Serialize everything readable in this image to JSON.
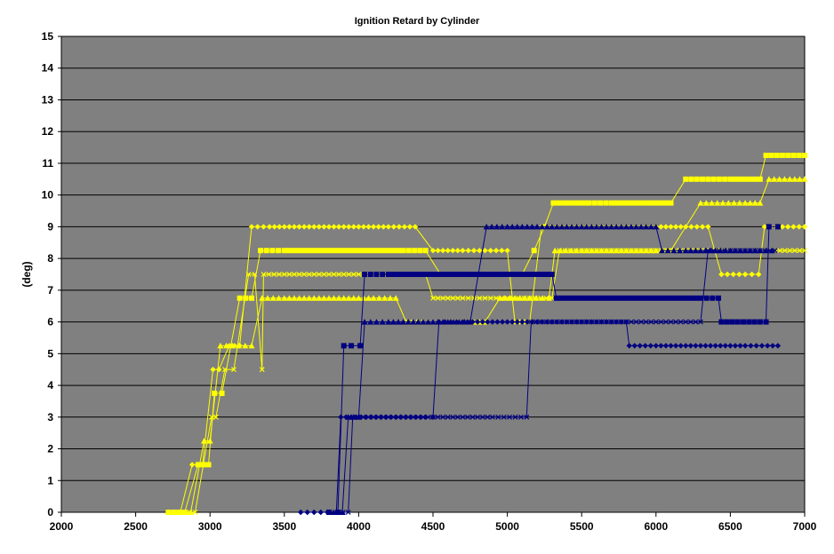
{
  "chart_data": {
    "type": "line",
    "title": "Ignition Retard by Cylinder",
    "xlabel": "",
    "ylabel": "(deg)",
    "xlim": [
      2000,
      7000
    ],
    "ylim": [
      0,
      15
    ],
    "x_ticks": [
      2000,
      2500,
      3000,
      3500,
      4000,
      4500,
      5000,
      5500,
      6000,
      6500,
      7000
    ],
    "y_ticks": [
      0,
      1,
      2,
      3,
      4,
      5,
      6,
      7,
      8,
      9,
      10,
      11,
      12,
      13,
      14,
      15
    ],
    "grid": "horizontal",
    "plot_background": "#808080",
    "series": [
      {
        "color": "#FFFF00",
        "marker": "diamond",
        "points": [
          [
            2720,
            0
          ],
          [
            2800,
            0
          ],
          [
            2880,
            1.5
          ],
          [
            2950,
            1.5
          ],
          [
            3020,
            4.5
          ],
          [
            3060,
            4.5
          ],
          [
            3130,
            5.25
          ],
          [
            3200,
            5.25
          ],
          [
            3280,
            9
          ],
          [
            3400,
            9
          ],
          [
            3600,
            9
          ],
          [
            3800,
            9
          ],
          [
            4000,
            9
          ],
          [
            4200,
            9
          ],
          [
            4380,
            9
          ],
          [
            4500,
            8.25
          ],
          [
            4700,
            8.25
          ],
          [
            4850,
            8.25
          ],
          [
            5000,
            8.25
          ],
          [
            5050,
            6
          ],
          [
            5150,
            6
          ],
          [
            5230,
            9
          ],
          [
            5400,
            9
          ],
          [
            5600,
            9
          ],
          [
            5800,
            9
          ],
          [
            6000,
            9
          ],
          [
            6200,
            9
          ],
          [
            6350,
            9
          ],
          [
            6440,
            7.5
          ],
          [
            6600,
            7.5
          ],
          [
            6690,
            7.5
          ],
          [
            6730,
            9
          ],
          [
            6850,
            9
          ],
          [
            7000,
            9
          ]
        ]
      },
      {
        "color": "#FFFF00",
        "marker": "square",
        "points": [
          [
            2720,
            0
          ],
          [
            2830,
            0
          ],
          [
            2920,
            1.5
          ],
          [
            2990,
            1.5
          ],
          [
            3030,
            3.75
          ],
          [
            3080,
            3.75
          ],
          [
            3200,
            6.75
          ],
          [
            3280,
            6.75
          ],
          [
            3340,
            8.25
          ],
          [
            3500,
            8.25
          ],
          [
            3700,
            8.25
          ],
          [
            3900,
            8.25
          ],
          [
            4100,
            8.25
          ],
          [
            4300,
            8.25
          ],
          [
            4450,
            8.25
          ],
          [
            4550,
            7.5
          ],
          [
            4700,
            7.5
          ],
          [
            4850,
            7.5
          ],
          [
            5000,
            7.5
          ],
          [
            5100,
            7.5
          ],
          [
            5180,
            8.25
          ],
          [
            5250,
            9
          ],
          [
            5310,
            9.75
          ],
          [
            5450,
            9.75
          ],
          [
            5550,
            9.75
          ],
          [
            5700,
            9.75
          ],
          [
            5900,
            9.75
          ],
          [
            6100,
            9.75
          ],
          [
            6200,
            10.5
          ],
          [
            6350,
            10.5
          ],
          [
            6500,
            10.5
          ],
          [
            6700,
            10.5
          ],
          [
            6740,
            11.25
          ],
          [
            6850,
            11.25
          ],
          [
            7000,
            11.25
          ]
        ]
      },
      {
        "color": "#FFFF00",
        "marker": "triangle",
        "points": [
          [
            2720,
            0
          ],
          [
            2870,
            0
          ],
          [
            2960,
            2.25
          ],
          [
            3000,
            2.25
          ],
          [
            3070,
            5.25
          ],
          [
            3150,
            5.25
          ],
          [
            3280,
            5.25
          ],
          [
            3350,
            6.75
          ],
          [
            3500,
            6.75
          ],
          [
            3700,
            6.75
          ],
          [
            3900,
            6.75
          ],
          [
            4100,
            6.75
          ],
          [
            4250,
            6.75
          ],
          [
            4320,
            6
          ],
          [
            4500,
            6
          ],
          [
            4700,
            6
          ],
          [
            4850,
            6
          ],
          [
            4950,
            6.75
          ],
          [
            5050,
            6.75
          ],
          [
            5150,
            6.75
          ],
          [
            5280,
            6.75
          ],
          [
            5320,
            8.25
          ],
          [
            5500,
            8.25
          ],
          [
            5700,
            8.25
          ],
          [
            5900,
            8.25
          ],
          [
            6100,
            8.25
          ],
          [
            6300,
            9.75
          ],
          [
            6450,
            9.75
          ],
          [
            6600,
            9.75
          ],
          [
            6700,
            9.75
          ],
          [
            6760,
            10.5
          ],
          [
            6900,
            10.5
          ],
          [
            7000,
            10.5
          ]
        ]
      },
      {
        "color": "#FFFF00",
        "marker": "cross",
        "points": [
          [
            2720,
            0
          ],
          [
            2900,
            0
          ],
          [
            3010,
            3
          ],
          [
            3040,
            3
          ],
          [
            3100,
            4.5
          ],
          [
            3160,
            4.5
          ],
          [
            3260,
            7.5
          ],
          [
            3300,
            7.5
          ],
          [
            3350,
            4.5
          ],
          [
            3360,
            7.5
          ],
          [
            3500,
            7.5
          ],
          [
            3700,
            7.5
          ],
          [
            3900,
            7.5
          ],
          [
            4100,
            7.5
          ],
          [
            4300,
            7.5
          ],
          [
            4450,
            7.5
          ],
          [
            4500,
            6.75
          ],
          [
            4600,
            6.75
          ],
          [
            4700,
            6.75
          ],
          [
            4850,
            6.75
          ],
          [
            5000,
            6.75
          ],
          [
            5150,
            6.75
          ],
          [
            5300,
            6.75
          ],
          [
            5350,
            8.25
          ],
          [
            5500,
            8.25
          ],
          [
            5700,
            8.25
          ],
          [
            5900,
            8.25
          ],
          [
            6100,
            8.25
          ],
          [
            6300,
            8.25
          ],
          [
            6500,
            8.25
          ],
          [
            6700,
            8.25
          ],
          [
            6800,
            8.25
          ],
          [
            6900,
            8.25
          ],
          [
            7000,
            8.25
          ]
        ]
      },
      {
        "color": "#000080",
        "marker": "diamond",
        "points": [
          [
            3610,
            0
          ],
          [
            3700,
            0
          ],
          [
            3790,
            0
          ],
          [
            3850,
            0
          ],
          [
            3880,
            3
          ],
          [
            3950,
            3
          ],
          [
            4050,
            3
          ],
          [
            4150,
            3
          ],
          [
            4250,
            3
          ],
          [
            4350,
            3
          ],
          [
            4450,
            3
          ],
          [
            4500,
            3
          ],
          [
            4540,
            6
          ],
          [
            4700,
            6
          ],
          [
            4900,
            6
          ],
          [
            5100,
            6
          ],
          [
            5300,
            6
          ],
          [
            5500,
            6
          ],
          [
            5700,
            6
          ],
          [
            5800,
            6
          ],
          [
            5820,
            5.25
          ],
          [
            6000,
            5.25
          ],
          [
            6200,
            5.25
          ],
          [
            6400,
            5.25
          ],
          [
            6600,
            5.25
          ],
          [
            6750,
            5.25
          ],
          [
            6820,
            5.25
          ]
        ]
      },
      {
        "color": "#000080",
        "marker": "square",
        "points": [
          [
            3800,
            0
          ],
          [
            3860,
            0
          ],
          [
            3900,
            5.25
          ],
          [
            3950,
            5.25
          ],
          [
            4010,
            5.25
          ],
          [
            4040,
            7.5
          ],
          [
            4200,
            7.5
          ],
          [
            4400,
            7.5
          ],
          [
            4600,
            7.5
          ],
          [
            4800,
            7.5
          ],
          [
            5000,
            7.5
          ],
          [
            5200,
            7.5
          ],
          [
            5300,
            7.5
          ],
          [
            5330,
            6.75
          ],
          [
            5500,
            6.75
          ],
          [
            5700,
            6.75
          ],
          [
            5900,
            6.75
          ],
          [
            6100,
            6.75
          ],
          [
            6300,
            6.75
          ],
          [
            6420,
            6.75
          ],
          [
            6440,
            6
          ],
          [
            6550,
            6
          ],
          [
            6700,
            6
          ],
          [
            6740,
            6
          ],
          [
            6760,
            9
          ],
          [
            6820,
            9
          ]
        ]
      },
      {
        "color": "#000080",
        "marker": "triangle",
        "points": [
          [
            3830,
            0
          ],
          [
            3890,
            0
          ],
          [
            3930,
            3
          ],
          [
            4000,
            3
          ],
          [
            4040,
            6
          ],
          [
            4200,
            6
          ],
          [
            4400,
            6
          ],
          [
            4600,
            6
          ],
          [
            4750,
            6
          ],
          [
            4860,
            9
          ],
          [
            5000,
            9
          ],
          [
            5200,
            9
          ],
          [
            5400,
            9
          ],
          [
            5600,
            9
          ],
          [
            5800,
            9
          ],
          [
            6000,
            9
          ],
          [
            6040,
            8.25
          ],
          [
            6200,
            8.25
          ],
          [
            6400,
            8.25
          ],
          [
            6600,
            8.25
          ],
          [
            6700,
            8.25
          ],
          [
            6780,
            8.25
          ]
        ]
      },
      {
        "color": "#000080",
        "marker": "cross",
        "points": [
          [
            3860,
            0
          ],
          [
            3930,
            0
          ],
          [
            3960,
            3
          ],
          [
            4100,
            3
          ],
          [
            4300,
            3
          ],
          [
            4500,
            3
          ],
          [
            4700,
            3
          ],
          [
            4900,
            3
          ],
          [
            5130,
            3
          ],
          [
            5160,
            6
          ],
          [
            5400,
            6
          ],
          [
            5600,
            6
          ],
          [
            5800,
            6
          ],
          [
            6000,
            6
          ],
          [
            6200,
            6
          ],
          [
            6300,
            6
          ],
          [
            6350,
            8.25
          ],
          [
            6500,
            8.25
          ],
          [
            6700,
            8.25
          ],
          [
            6800,
            8.25
          ]
        ]
      }
    ]
  }
}
